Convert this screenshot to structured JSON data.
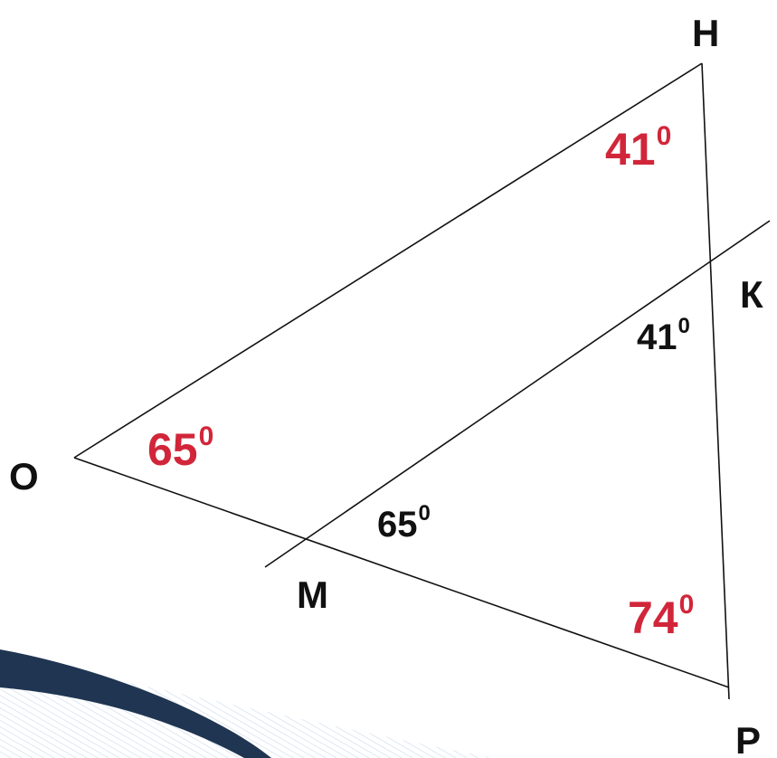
{
  "colors": {
    "line": "#111111",
    "red_angle": "#d1263a",
    "black_angle": "#111111",
    "decor_dark": "#1f3552",
    "decor_light": "#d7e6f5"
  },
  "vertices": {
    "H": "Н",
    "K": "К",
    "O": "О",
    "M": "М",
    "P": "Р"
  },
  "angles": {
    "H": {
      "value": "41",
      "sup": "0"
    },
    "K": {
      "value": "41",
      "sup": "0"
    },
    "O": {
      "value": "65",
      "sup": "0"
    },
    "M": {
      "value": "65",
      "sup": "0"
    },
    "P": {
      "value": "74",
      "sup": "0"
    }
  }
}
